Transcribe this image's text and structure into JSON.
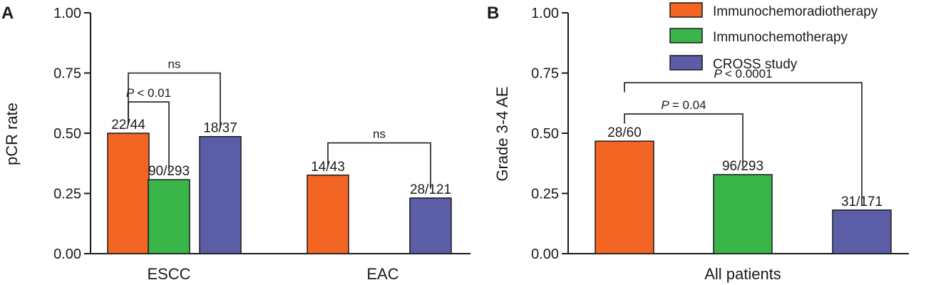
{
  "colors": {
    "icrt": "#f26522",
    "ict": "#3ab54a",
    "cross": "#5b5ea6"
  },
  "legend": [
    "Immunochemoradiotherapy",
    "Immunochemotherapy",
    "CROSS study"
  ],
  "chart_data": [
    {
      "panel": "A",
      "type": "bar",
      "ylabel": "pCR rate",
      "ylim": [
        0,
        1
      ],
      "yticks": [
        "0.00",
        "0.25",
        "0.50",
        "0.75",
        "1.00"
      ],
      "categories": [
        "ESCC",
        "EAC"
      ],
      "series": [
        {
          "name": "Immunochemoradiotherapy",
          "values": [
            0.5,
            0.326
          ],
          "labels": [
            "22/44",
            "14/43"
          ]
        },
        {
          "name": "Immunochemotherapy",
          "values": [
            0.307,
            null
          ],
          "labels": [
            "90/293",
            ""
          ]
        },
        {
          "name": "CROSS study",
          "values": [
            0.486,
            0.231
          ],
          "labels": [
            "18/37",
            "28/121"
          ]
        }
      ],
      "comparisons": [
        {
          "label": "ns",
          "italic_p": false,
          "group": "ESCC",
          "from": "Immunochemoradiotherapy",
          "to": "CROSS study"
        },
        {
          "label": "< 0.01",
          "italic_p": true,
          "group": "ESCC",
          "from": "Immunochemoradiotherapy",
          "to": "Immunochemotherapy"
        },
        {
          "label": "ns",
          "italic_p": false,
          "group": "EAC",
          "from": "Immunochemoradiotherapy",
          "to": "CROSS study"
        }
      ]
    },
    {
      "panel": "B",
      "type": "bar",
      "ylabel": "Grade 3-4 AE",
      "ylim": [
        0,
        1
      ],
      "yticks": [
        "0.00",
        "0.25",
        "0.50",
        "0.75",
        "1.00"
      ],
      "categories": [
        "All patients"
      ],
      "series": [
        {
          "name": "Immunochemoradiotherapy",
          "values": [
            0.467
          ],
          "labels": [
            "28/60"
          ]
        },
        {
          "name": "Immunochemotherapy",
          "values": [
            0.328
          ],
          "labels": [
            "96/293"
          ]
        },
        {
          "name": "CROSS study",
          "values": [
            0.181
          ],
          "labels": [
            "31/171"
          ]
        }
      ],
      "comparisons": [
        {
          "label": "< 0.0001",
          "italic_p": true,
          "group": "All patients",
          "from": "Immunochemoradiotherapy",
          "to": "CROSS study"
        },
        {
          "label": "= 0.04",
          "italic_p": true,
          "group": "All patients",
          "from": "Immunochemoradiotherapy",
          "to": "Immunochemotherapy"
        }
      ]
    }
  ]
}
